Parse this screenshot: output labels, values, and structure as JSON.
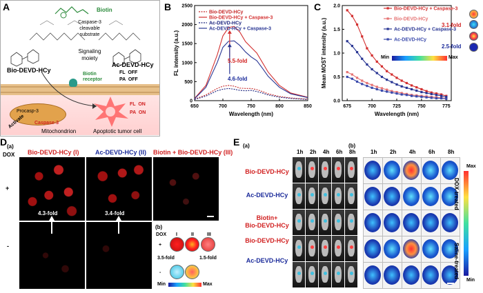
{
  "panelA": {
    "label": "A",
    "biotin": "Biotin",
    "cleavable": "Caspase-3\ncleavable\nsubstrate",
    "signaling": "Signaling\nmoiety",
    "probe_left": "Bio-DEVD-HCy",
    "probe_right": "Ac-DEVD-HCy",
    "fl_off": "FL  OFF",
    "pa_off": "PA  OFF",
    "receptor": "Biotin\nreceptor",
    "procasp": "Procasp-3",
    "activate": "Activate",
    "caspase": "Caspase-3",
    "mito": "Mitochondrion",
    "fl_on": "FL  ON",
    "pa_on": "PA  ON",
    "tumor": "Apoptotic tumor cell"
  },
  "panelB": {
    "label": "B",
    "legend": [
      "Bio-DEVD-HCy",
      "Bio-DEVD-HCy + Caspase-3",
      "Ac-DEVD-HCy",
      "Ac-DEVD-HCy + Caspase-3"
    ],
    "fold_red": "5.5-fold",
    "fold_blue": "4.6-fold"
  },
  "panelC": {
    "label": "C",
    "legend": [
      "Bio-DEVD-HCy + Caspase-3",
      "Bio-DEVD-HCy",
      "Ac-DEVD-HCy + Caspase-3",
      "Ac-DEVD-HCy"
    ],
    "fold_red": "3.1-fold",
    "fold_blue": "2.5-fold",
    "min": "Min",
    "max": "Max"
  },
  "panelD": {
    "label": "D",
    "sub_a": "(a)",
    "sub_b": "(b)",
    "dox": "DOX",
    "col1": "Bio-DEVD-HCy (I)",
    "col2": "Ac-DEVD-HCy (II)",
    "col3": "Biotin + Bio-DEVD-HCy (III)",
    "plus": "+",
    "minus": "-",
    "fold1": "4.3-fold",
    "fold2": "3.4-fold",
    "roman": [
      "I",
      "II",
      "III"
    ],
    "fold3": "3.5-fold",
    "fold4": "1.5-fold",
    "min": "Min",
    "max": "Max"
  },
  "panelE": {
    "label": "E",
    "sub_a": "(a)",
    "sub_b": "(b)",
    "times": [
      "1h",
      "2h",
      "4h",
      "6h",
      "8h"
    ],
    "rows": [
      "Bio-DEVD-HCy",
      "Ac-DEVD-HCy",
      "Biotin+\nBio-DEVD-HCy",
      "Bio-DEVD-HCy",
      "Ac-DEVD-HCy"
    ],
    "dox_treated": "DOX-treated",
    "saline_treated": "Saline-treated",
    "max": "Max",
    "min": "Min"
  },
  "chart_data": [
    {
      "type": "line",
      "panel": "B",
      "xlabel": "Wavelength (nm)",
      "ylabel": "FL intensity (a.u.)",
      "xlim": [
        650,
        850
      ],
      "ylim": [
        0,
        2500
      ],
      "xticks": [
        650,
        700,
        750,
        800,
        850
      ],
      "yticks": [
        0,
        500,
        1000,
        1500,
        2000,
        2500
      ],
      "x": [
        650,
        670,
        690,
        700,
        710,
        720,
        730,
        740,
        750,
        760,
        770,
        780,
        800,
        820,
        850
      ],
      "series": [
        {
          "name": "Bio-DEVD-HCy",
          "style": "dotted",
          "color": "#c62828",
          "values": [
            40,
            150,
            320,
            380,
            400,
            380,
            330,
            320,
            320,
            290,
            240,
            180,
            110,
            70,
            40
          ]
        },
        {
          "name": "Bio-DEVD-HCy + Caspase-3",
          "style": "solid",
          "color": "#d32f2f",
          "values": [
            60,
            400,
            1200,
            1700,
            1920,
            1950,
            1800,
            1550,
            1400,
            1250,
            1000,
            750,
            400,
            200,
            90
          ]
        },
        {
          "name": "Ac-DEVD-HCy",
          "style": "dotted",
          "color": "#1a237e",
          "values": [
            30,
            120,
            260,
            300,
            320,
            300,
            270,
            260,
            270,
            240,
            200,
            150,
            90,
            60,
            30
          ]
        },
        {
          "name": "Ac-DEVD-HCy + Caspase-3",
          "style": "solid",
          "color": "#283593",
          "values": [
            50,
            350,
            1000,
            1400,
            1560,
            1570,
            1450,
            1280,
            1150,
            1050,
            850,
            640,
            350,
            180,
            80
          ]
        }
      ]
    },
    {
      "type": "line",
      "panel": "C",
      "xlabel": "Wavelength (nm)",
      "ylabel": "Mean MOST intensity (a.u.)",
      "xlim": [
        670,
        780
      ],
      "ylim": [
        0,
        2.0
      ],
      "xticks": [
        675,
        700,
        725,
        750,
        775
      ],
      "yticks": [
        0.0,
        0.5,
        1.0,
        1.5,
        2.0
      ],
      "x": [
        675,
        680,
        685,
        690,
        695,
        700,
        705,
        710,
        715,
        720,
        725,
        730,
        735,
        740,
        745,
        750,
        755,
        760,
        765,
        770,
        775
      ],
      "series": [
        {
          "name": "Bio-DEVD-HCy + Caspase-3",
          "color": "#d32f2f",
          "values": [
            1.9,
            1.78,
            1.6,
            1.35,
            1.1,
            0.95,
            0.82,
            0.72,
            0.62,
            0.55,
            0.48,
            0.42,
            0.37,
            0.32,
            0.28,
            0.24,
            0.2,
            0.17,
            0.15,
            0.13,
            0.1
          ]
        },
        {
          "name": "Bio-DEVD-HCy",
          "color": "#e57373",
          "values": [
            0.6,
            0.55,
            0.48,
            0.42,
            0.37,
            0.33,
            0.29,
            0.26,
            0.23,
            0.2,
            0.18,
            0.16,
            0.14,
            0.12,
            0.11,
            0.1,
            0.09,
            0.08,
            0.07,
            0.06,
            0.05
          ]
        },
        {
          "name": "Ac-DEVD-HCy + Caspase-3",
          "color": "#283593",
          "values": [
            1.25,
            1.15,
            1.02,
            0.88,
            0.76,
            0.66,
            0.58,
            0.5,
            0.44,
            0.39,
            0.34,
            0.3,
            0.27,
            0.24,
            0.21,
            0.18,
            0.16,
            0.14,
            0.12,
            0.1,
            0.08
          ]
        },
        {
          "name": "Ac-DEVD-HCy",
          "color": "#3949ab",
          "values": [
            0.5,
            0.46,
            0.4,
            0.35,
            0.31,
            0.27,
            0.24,
            0.21,
            0.19,
            0.17,
            0.15,
            0.13,
            0.12,
            0.1,
            0.09,
            0.08,
            0.07,
            0.06,
            0.05,
            0.05,
            0.04
          ]
        }
      ]
    }
  ]
}
